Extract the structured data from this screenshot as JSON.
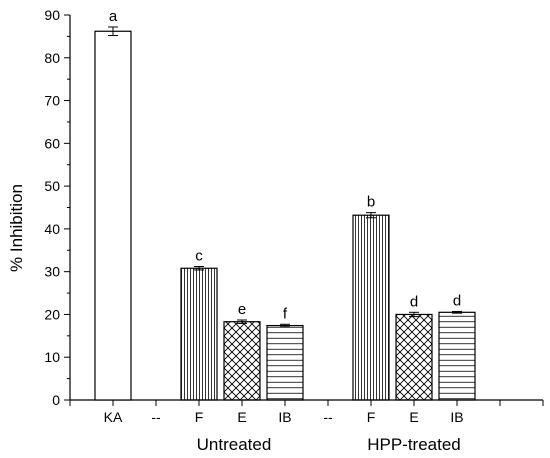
{
  "chart_data": {
    "type": "bar",
    "ylabel": "% Inhibition",
    "ylim": [
      0,
      90
    ],
    "yticks": [
      0,
      10,
      20,
      30,
      40,
      50,
      60,
      70,
      80,
      90
    ],
    "categories": [
      "KA",
      "--",
      "F",
      "E",
      "IB",
      "--",
      "F",
      "E",
      "IB"
    ],
    "groups": [
      {
        "label": "Untreated",
        "categories": [
          "F",
          "E",
          "IB"
        ]
      },
      {
        "label": "HPP-treated",
        "categories": [
          "F",
          "E",
          "IB"
        ]
      }
    ],
    "bars": [
      {
        "category": "KA",
        "value": 86.2,
        "error": 1.0,
        "letter": "a",
        "pattern": "none"
      },
      {
        "category": "F",
        "group": "Untreated",
        "value": 30.8,
        "error": 0.4,
        "letter": "c",
        "pattern": "vertical"
      },
      {
        "category": "E",
        "group": "Untreated",
        "value": 18.3,
        "error": 0.4,
        "letter": "e",
        "pattern": "crosshatch"
      },
      {
        "category": "IB",
        "group": "Untreated",
        "value": 17.4,
        "error": 0.3,
        "letter": "f",
        "pattern": "horizontal"
      },
      {
        "category": "F",
        "group": "HPP-treated",
        "value": 43.2,
        "error": 0.6,
        "letter": "b",
        "pattern": "vertical"
      },
      {
        "category": "E",
        "group": "HPP-treated",
        "value": 20.0,
        "error": 0.5,
        "letter": "d",
        "pattern": "crosshatch"
      },
      {
        "category": "IB",
        "group": "HPP-treated",
        "value": 20.5,
        "error": 0.2,
        "letter": "d",
        "pattern": "horizontal"
      }
    ],
    "grid": false,
    "legend": "none"
  }
}
